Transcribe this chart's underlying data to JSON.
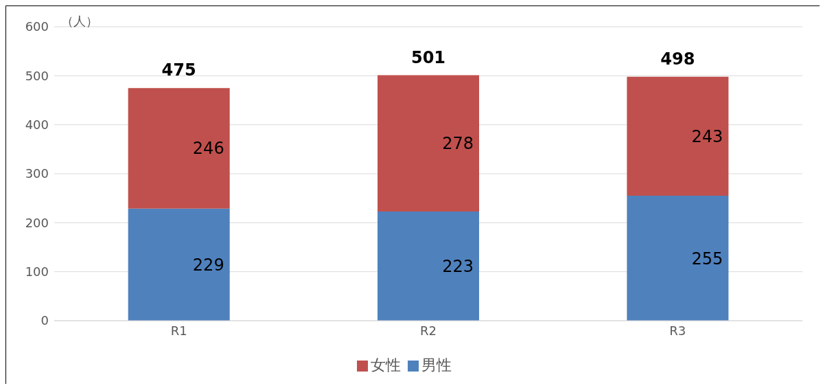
{
  "chart_data": {
    "type": "bar",
    "stacked": true,
    "ylabel": "（人）",
    "categories": [
      "R1",
      "R2",
      "R3"
    ],
    "series": [
      {
        "name": "男性",
        "color": "#4f81bd",
        "values": [
          229,
          223,
          255
        ]
      },
      {
        "name": "女性",
        "color": "#c0504d",
        "values": [
          246,
          278,
          243
        ]
      }
    ],
    "totals": [
      "475",
      "501",
      "498"
    ],
    "ylim": [
      0,
      600
    ],
    "yticks": [
      0,
      100,
      200,
      300,
      400,
      500,
      600
    ],
    "grid": "y",
    "legend": "bottom",
    "data_labels": true
  }
}
